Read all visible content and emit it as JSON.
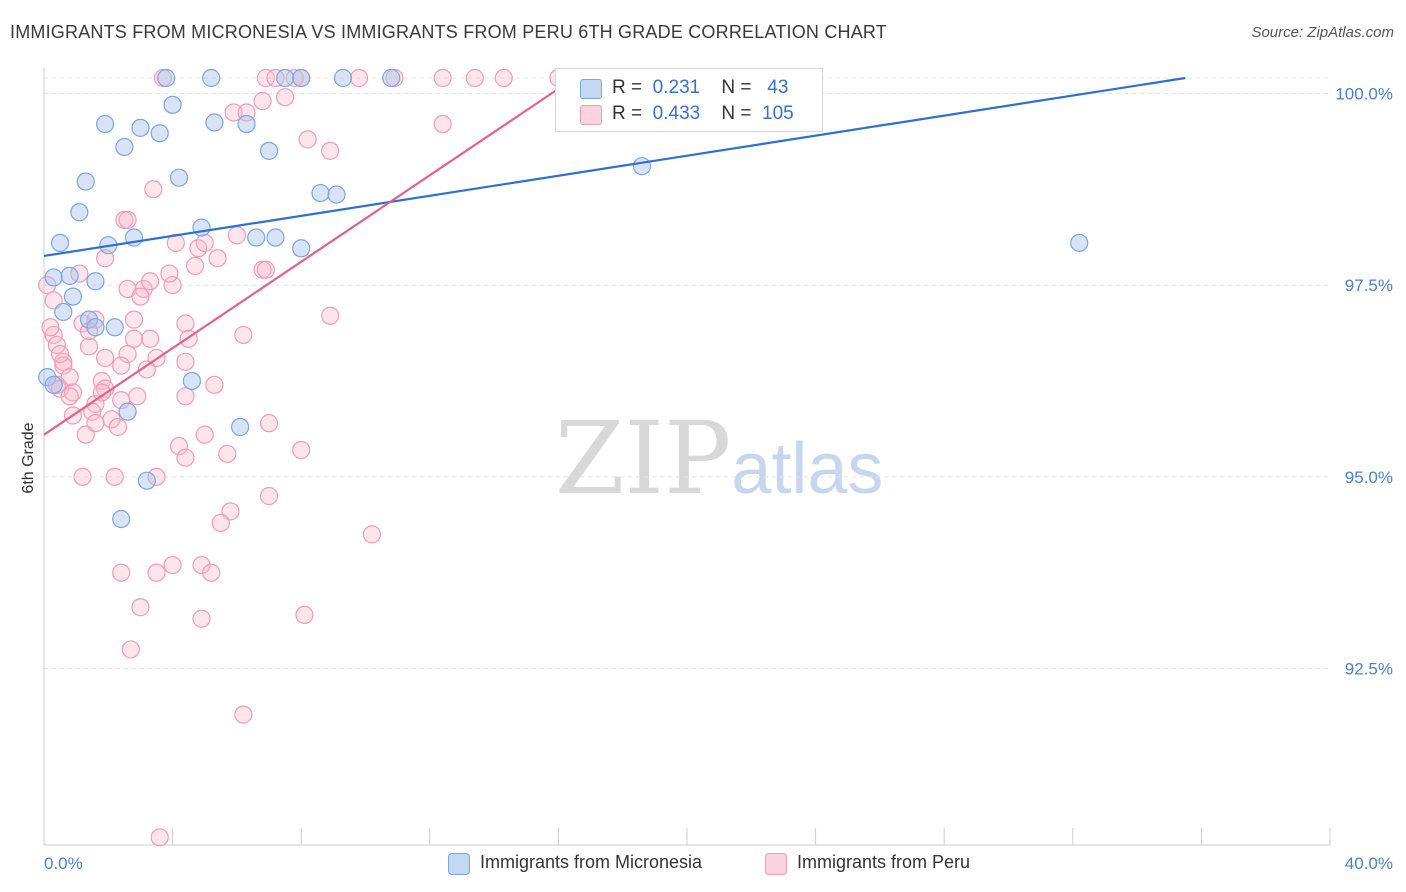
{
  "header": {
    "title": "IMMIGRANTS FROM MICRONESIA VS IMMIGRANTS FROM PERU 6TH GRADE CORRELATION CHART",
    "source": "Source: ZipAtlas.com"
  },
  "watermark": {
    "zip": "ZIP",
    "atlas": "atlas"
  },
  "legend": {
    "rows": [
      {
        "r_label": "R =",
        "r_value": "0.231",
        "n_label": "N =",
        "n_value": "43",
        "color": "#a9c4ec"
      },
      {
        "r_label": "R =",
        "r_value": "0.433",
        "n_label": "N =",
        "n_value": "105",
        "color": "#f6b6c8"
      }
    ]
  },
  "bottom_legend": {
    "items": [
      {
        "label": "Immigrants from Micronesia",
        "color": "#a9c4ec"
      },
      {
        "label": "Immigrants from Peru",
        "color": "#f6b6c8"
      }
    ]
  },
  "chart_data": {
    "type": "scatter",
    "xlabel": "",
    "ylabel": "6th Grade",
    "xlim": [
      0,
      40
    ],
    "ylim": [
      90.2,
      100.2
    ],
    "x_tick_labels": [
      "0.0%",
      "40.0%"
    ],
    "y_ticks": [
      100.0,
      97.5,
      95.0,
      92.5
    ],
    "y_tick_labels": [
      "100.0%",
      "97.5%",
      "95.0%",
      "92.5%"
    ],
    "grid": true,
    "legend_position": "top-center",
    "series": [
      {
        "name": "Immigrants from Micronesia",
        "color": "#7aa6e6",
        "trend": [
          [
            0.0,
            97.88
          ],
          [
            35.5,
            100.2
          ]
        ],
        "trend_color": "#2f6fd0",
        "points": [
          [
            3.8,
            100.2
          ],
          [
            5.2,
            100.2
          ],
          [
            7.5,
            100.2
          ],
          [
            8.0,
            100.2
          ],
          [
            9.3,
            100.2
          ],
          [
            10.8,
            100.2
          ],
          [
            4.0,
            99.85
          ],
          [
            1.9,
            99.6
          ],
          [
            3.0,
            99.55
          ],
          [
            3.6,
            99.48
          ],
          [
            5.3,
            99.62
          ],
          [
            6.3,
            99.6
          ],
          [
            2.5,
            99.3
          ],
          [
            7.0,
            99.25
          ],
          [
            1.3,
            98.85
          ],
          [
            4.2,
            98.9
          ],
          [
            8.6,
            98.7
          ],
          [
            9.1,
            98.68
          ],
          [
            1.1,
            98.45
          ],
          [
            4.9,
            98.25
          ],
          [
            2.8,
            98.12
          ],
          [
            6.6,
            98.12
          ],
          [
            7.2,
            98.12
          ],
          [
            0.5,
            98.05
          ],
          [
            2.0,
            98.02
          ],
          [
            8.0,
            97.98
          ],
          [
            0.3,
            97.6
          ],
          [
            0.8,
            97.62
          ],
          [
            1.6,
            97.55
          ],
          [
            0.9,
            97.35
          ],
          [
            0.6,
            97.15
          ],
          [
            1.4,
            97.05
          ],
          [
            2.2,
            96.95
          ],
          [
            1.6,
            96.95
          ],
          [
            0.1,
            96.3
          ],
          [
            0.3,
            96.2
          ],
          [
            4.6,
            96.25
          ],
          [
            2.6,
            95.85
          ],
          [
            6.1,
            95.65
          ],
          [
            3.2,
            94.95
          ],
          [
            2.4,
            94.45
          ],
          [
            18.6,
            99.05
          ],
          [
            32.2,
            98.05
          ]
        ]
      },
      {
        "name": "Immigrants from Peru",
        "color": "#f29bb6",
        "trend": [
          [
            0.0,
            95.55
          ],
          [
            16.5,
            100.2
          ]
        ],
        "trend_color": "#e0628d",
        "points": [
          [
            3.7,
            100.2
          ],
          [
            6.9,
            100.2
          ],
          [
            7.8,
            100.2
          ],
          [
            7.2,
            100.2
          ],
          [
            8.0,
            100.2
          ],
          [
            9.8,
            100.2
          ],
          [
            10.9,
            100.2
          ],
          [
            12.4,
            100.2
          ],
          [
            13.4,
            100.2
          ],
          [
            14.3,
            100.2
          ],
          [
            16.0,
            100.2
          ],
          [
            7.5,
            99.95
          ],
          [
            6.8,
            99.9
          ],
          [
            5.9,
            99.75
          ],
          [
            6.3,
            99.75
          ],
          [
            12.4,
            99.6
          ],
          [
            8.2,
            99.4
          ],
          [
            8.9,
            99.25
          ],
          [
            3.4,
            98.75
          ],
          [
            2.5,
            98.35
          ],
          [
            2.6,
            98.35
          ],
          [
            6.0,
            98.15
          ],
          [
            4.1,
            98.05
          ],
          [
            4.8,
            97.98
          ],
          [
            5.0,
            98.05
          ],
          [
            1.9,
            97.85
          ],
          [
            5.4,
            97.85
          ],
          [
            6.8,
            97.7
          ],
          [
            6.9,
            97.7
          ],
          [
            1.1,
            97.65
          ],
          [
            4.0,
            97.5
          ],
          [
            2.6,
            97.45
          ],
          [
            3.1,
            97.45
          ],
          [
            3.0,
            97.35
          ],
          [
            0.1,
            97.5
          ],
          [
            8.9,
            97.1
          ],
          [
            1.6,
            97.05
          ],
          [
            2.8,
            97.05
          ],
          [
            4.4,
            97.0
          ],
          [
            1.2,
            97.0
          ],
          [
            6.2,
            96.85
          ],
          [
            3.3,
            96.8
          ],
          [
            4.5,
            96.8
          ],
          [
            2.8,
            96.8
          ],
          [
            0.3,
            96.85
          ],
          [
            1.4,
            96.7
          ],
          [
            2.6,
            96.6
          ],
          [
            1.9,
            96.55
          ],
          [
            3.5,
            96.55
          ],
          [
            4.4,
            96.5
          ],
          [
            0.6,
            96.5
          ],
          [
            0.6,
            96.45
          ],
          [
            2.4,
            96.45
          ],
          [
            3.2,
            96.4
          ],
          [
            0.8,
            96.3
          ],
          [
            1.8,
            96.25
          ],
          [
            0.4,
            96.2
          ],
          [
            0.5,
            96.15
          ],
          [
            0.9,
            96.1
          ],
          [
            1.9,
            96.15
          ],
          [
            2.9,
            96.05
          ],
          [
            4.4,
            96.05
          ],
          [
            5.3,
            96.2
          ],
          [
            1.6,
            95.95
          ],
          [
            1.5,
            95.85
          ],
          [
            0.9,
            95.8
          ],
          [
            2.1,
            95.75
          ],
          [
            7.0,
            95.7
          ],
          [
            1.6,
            95.7
          ],
          [
            2.3,
            95.65
          ],
          [
            1.3,
            95.55
          ],
          [
            5.0,
            95.55
          ],
          [
            4.2,
            95.4
          ],
          [
            8.0,
            95.35
          ],
          [
            5.7,
            95.3
          ],
          [
            4.4,
            95.25
          ],
          [
            1.2,
            95.0
          ],
          [
            2.2,
            95.0
          ],
          [
            3.5,
            95.0
          ],
          [
            7.0,
            94.75
          ],
          [
            5.8,
            94.55
          ],
          [
            5.5,
            94.4
          ],
          [
            10.2,
            94.25
          ],
          [
            4.0,
            93.85
          ],
          [
            4.9,
            93.85
          ],
          [
            3.5,
            93.75
          ],
          [
            2.4,
            93.75
          ],
          [
            5.2,
            93.75
          ],
          [
            3.0,
            93.3
          ],
          [
            8.1,
            93.2
          ],
          [
            4.9,
            93.15
          ],
          [
            2.7,
            92.75
          ],
          [
            6.2,
            91.9
          ],
          [
            3.6,
            90.3
          ],
          [
            0.3,
            97.3
          ],
          [
            0.4,
            96.72
          ],
          [
            0.2,
            96.95
          ],
          [
            0.5,
            96.6
          ],
          [
            1.4,
            96.9
          ],
          [
            3.3,
            97.55
          ],
          [
            4.7,
            97.75
          ],
          [
            3.9,
            97.65
          ],
          [
            1.8,
            96.1
          ],
          [
            2.4,
            96.0
          ],
          [
            0.8,
            96.05
          ]
        ]
      }
    ]
  }
}
